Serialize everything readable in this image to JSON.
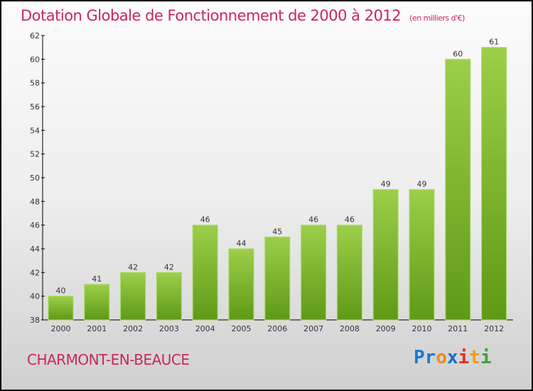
{
  "chart_data": {
    "type": "bar",
    "title": "Dotation Globale de Fonctionnement de 2000 à 2012",
    "subtitle": "(en milliers d'€)",
    "categories": [
      "2000",
      "2001",
      "2002",
      "2003",
      "2004",
      "2005",
      "2006",
      "2007",
      "2008",
      "2009",
      "2010",
      "2011",
      "2012"
    ],
    "values": [
      40,
      41,
      42,
      42,
      46,
      44,
      45,
      46,
      46,
      49,
      49,
      60,
      61
    ],
    "ylim": [
      38,
      62
    ],
    "yticks": [
      38,
      40,
      42,
      44,
      46,
      48,
      50,
      52,
      54,
      56,
      58,
      60,
      62
    ],
    "xlabel": "",
    "ylabel": "",
    "bar_color": "#8cc43c",
    "grid": false
  },
  "footer": {
    "city": "CHARMONT-EN-BEAUCE",
    "logo": "Proxiti"
  }
}
